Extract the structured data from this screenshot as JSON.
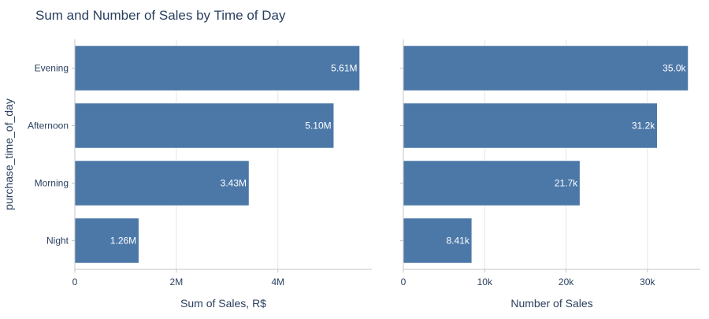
{
  "title": "Sum and Number of Sales by Time of Day",
  "y_axis_title": "purchase_time_of_day",
  "colors": {
    "bar": "#4c78a8",
    "grid": "#e5e5e5",
    "axis": "#c4c4c4",
    "text": "#2a3f5f",
    "bar_label": "#ffffff"
  },
  "chart_data": [
    {
      "type": "bar",
      "orientation": "horizontal",
      "categories": [
        "Evening",
        "Afternoon",
        "Morning",
        "Night"
      ],
      "values": [
        5610000,
        5100000,
        3430000,
        1260000
      ],
      "data_labels": [
        "5.61M",
        "5.10M",
        "3.43M",
        "1.26M"
      ],
      "xlabel": "Sum of Sales, R$",
      "ylabel": "purchase_time_of_day",
      "xlim": [
        0,
        5850000
      ],
      "xticks": [
        0,
        2000000,
        4000000
      ],
      "xtick_labels": [
        "0",
        "2M",
        "4M"
      ],
      "grid": true
    },
    {
      "type": "bar",
      "orientation": "horizontal",
      "categories": [
        "Evening",
        "Afternoon",
        "Morning",
        "Night"
      ],
      "values": [
        35000,
        31200,
        21700,
        8410
      ],
      "data_labels": [
        "35.0k",
        "31.2k",
        "21.7k",
        "8.41k"
      ],
      "xlabel": "Number of Sales",
      "xlim": [
        0,
        36500
      ],
      "xticks": [
        0,
        10000,
        20000,
        30000
      ],
      "xtick_labels": [
        "0",
        "10k",
        "20k",
        "30k"
      ],
      "grid": true
    }
  ]
}
